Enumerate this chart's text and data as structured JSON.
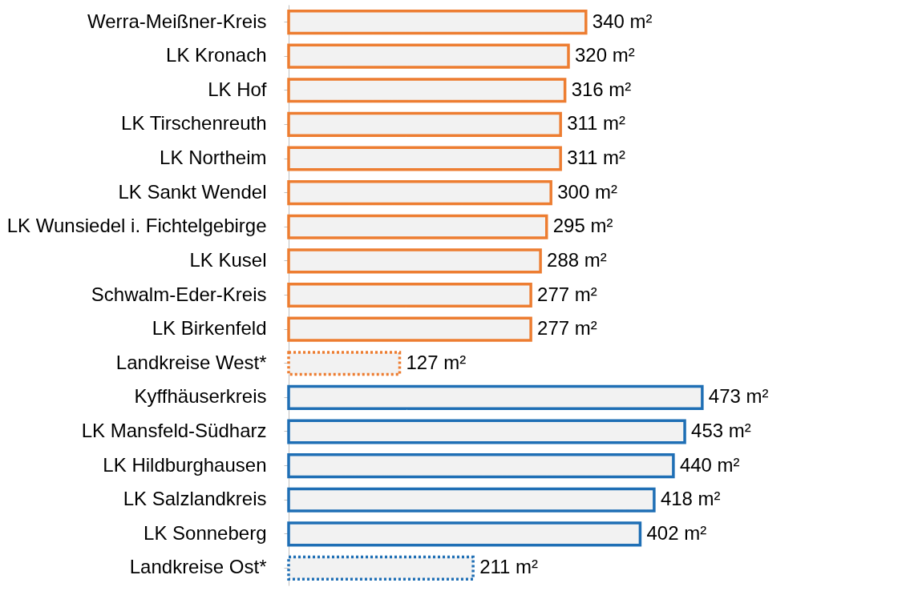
{
  "chart_data": {
    "type": "bar",
    "orientation": "horizontal",
    "categories": [
      "Werra-Meißner-Kreis",
      "LK Kronach",
      "LK Hof",
      "LK Tirschenreuth",
      "LK Northeim",
      "LK Sankt Wendel",
      "LK Wunsiedel i. Fichtelgebirge",
      "LK Kusel",
      "Schwalm-Eder-Kreis",
      "LK Birkenfeld",
      "Landkreise West*",
      "Kyffhäuserkreis",
      "LK Mansfeld-Südharz",
      "LK Hildburghausen",
      "LK Salzlandkreis",
      "LK Sonneberg",
      "Landkreise Ost*"
    ],
    "series": [
      {
        "color": "#ed7d31",
        "line_style": "solid",
        "values": [
          340,
          320,
          316,
          311,
          311,
          300,
          295,
          288,
          277,
          277,
          null,
          null,
          null,
          null,
          null,
          null,
          null
        ],
        "value_labels": [
          "340 m²",
          "320 m²",
          "316 m²",
          "311 m²",
          "311 m²",
          "300 m²",
          "295 m²",
          "288 m²",
          "277 m²",
          "277 m²",
          null,
          null,
          null,
          null,
          null,
          null,
          null
        ]
      },
      {
        "color": "#ed7d31",
        "line_style": "dotted",
        "values": [
          null,
          null,
          null,
          null,
          null,
          null,
          null,
          null,
          null,
          null,
          127,
          null,
          null,
          null,
          null,
          null,
          null
        ],
        "value_labels": [
          null,
          null,
          null,
          null,
          null,
          null,
          null,
          null,
          null,
          null,
          "127 m²",
          null,
          null,
          null,
          null,
          null,
          null
        ]
      },
      {
        "color": "#1f6fb5",
        "line_style": "solid",
        "values": [
          null,
          null,
          null,
          null,
          null,
          null,
          null,
          null,
          null,
          null,
          null,
          473,
          453,
          440,
          418,
          402,
          null
        ],
        "value_labels": [
          null,
          null,
          null,
          null,
          null,
          null,
          null,
          null,
          null,
          null,
          null,
          "473 m²",
          "453 m²",
          "440 m²",
          "418 m²",
          "402 m²",
          null
        ]
      },
      {
        "color": "#1f6fb5",
        "line_style": "dotted",
        "values": [
          null,
          null,
          null,
          null,
          null,
          null,
          null,
          null,
          null,
          null,
          null,
          null,
          null,
          null,
          null,
          null,
          211
        ],
        "value_labels": [
          null,
          null,
          null,
          null,
          null,
          null,
          null,
          null,
          null,
          null,
          null,
          null,
          null,
          null,
          null,
          null,
          "211 m²"
        ]
      }
    ],
    "grid": false
  }
}
